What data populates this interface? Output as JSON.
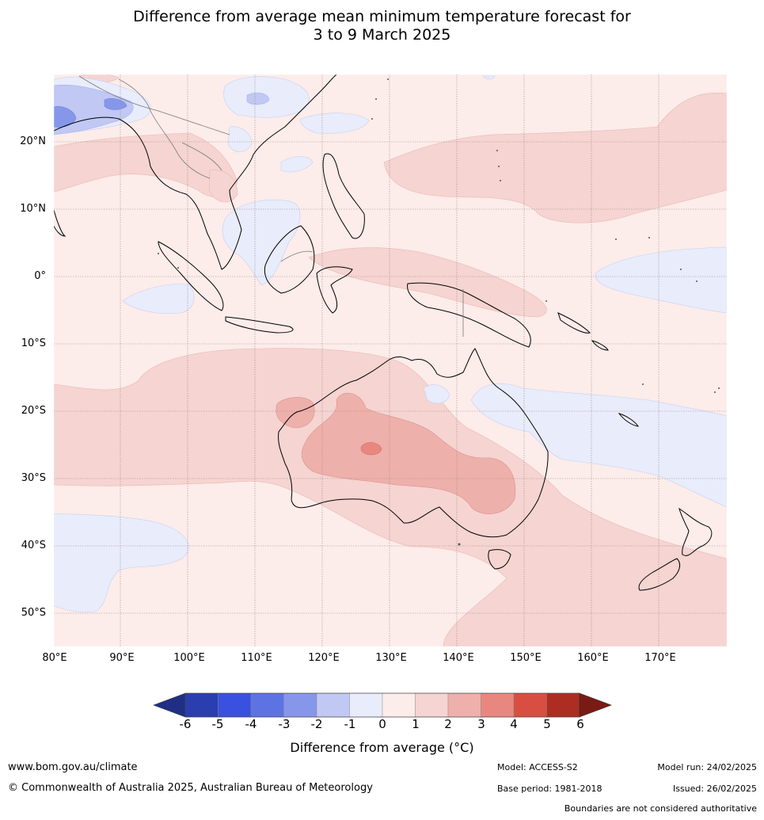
{
  "title_line1": "Difference from average mean minimum temperature forecast for",
  "title_line2": "3 to 9 March 2025",
  "lat_ticks": [
    "20°N",
    "10°N",
    "0°",
    "10°S",
    "20°S",
    "30°S",
    "40°S",
    "50°S"
  ],
  "lon_ticks": [
    "80°E",
    "90°E",
    "100°E",
    "110°E",
    "120°E",
    "130°E",
    "140°E",
    "150°E",
    "160°E",
    "170°E"
  ],
  "colorbar": {
    "labels": [
      "-6",
      "-5",
      "-4",
      "-3",
      "-2",
      "-1",
      "0",
      "1",
      "2",
      "3",
      "4",
      "5",
      "6"
    ],
    "colors": [
      "#1f2f86",
      "#2a3eb0",
      "#3a50e0",
      "#5d73e4",
      "#8697ea",
      "#c0c8f3",
      "#e8ecfb",
      "#fcecea",
      "#f5d4d1",
      "#eeb0ab",
      "#e8877f",
      "#d94e42",
      "#ad2d22",
      "#7a1a14"
    ],
    "title": "Difference from average (°C)"
  },
  "footer": {
    "website": "www.bom.gov.au/climate",
    "copyright": "© Commonwealth of Australia 2025, Australian Bureau of Meteorology",
    "model": "Model: ACCESS-S2",
    "base_period": "Base period: 1981-2018",
    "model_run": "Model run: 24/02/2025",
    "issued": "Issued: 26/02/2025",
    "disclaimer": "Boundaries are not considered authoritative"
  }
}
